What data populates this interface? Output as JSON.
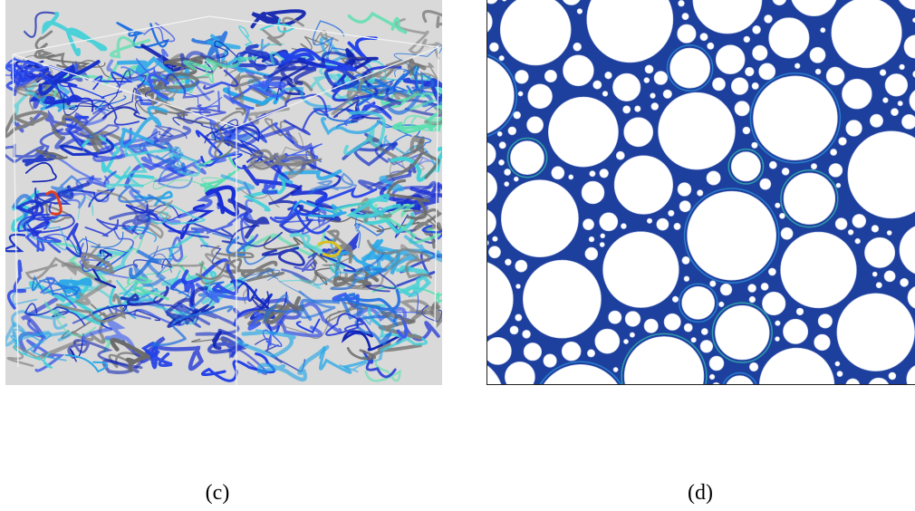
{
  "panels": [
    {
      "caption": "(c)"
    },
    {
      "caption": "(d)"
    }
  ]
}
